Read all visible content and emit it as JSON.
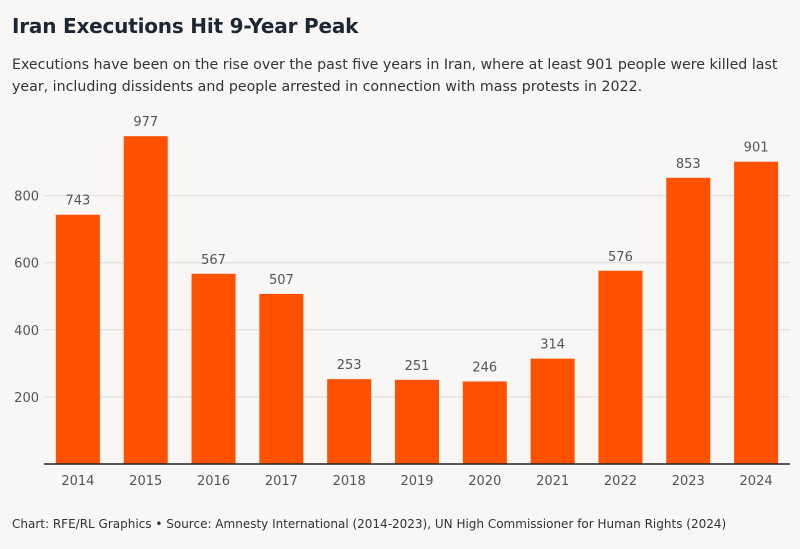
{
  "title": "Iran Executions Hit 9-Year Peak",
  "subtitle": "Executions have been on the rise over the past five years in Iran, where at least 901 people were killed last year, including dissidents and people arrested in connection with mass protests in 2022.",
  "footer": "Chart: RFE/RL Graphics • Source: Amnesty International (2014-2023), UN High Commissioner for Human Rights (2024)",
  "colors": {
    "bar": "#ff5100",
    "grid": "#dedcd8",
    "axis": "#222222",
    "label": "#555555"
  },
  "chart_data": {
    "type": "bar",
    "title": "Iran Executions Hit 9-Year Peak",
    "xlabel": "",
    "ylabel": "",
    "categories": [
      "2014",
      "2015",
      "2016",
      "2017",
      "2018",
      "2019",
      "2020",
      "2021",
      "2022",
      "2023",
      "2024"
    ],
    "values": [
      743,
      977,
      567,
      507,
      253,
      251,
      246,
      314,
      576,
      853,
      901
    ],
    "ylim": [
      0,
      1000
    ],
    "yticks": [
      200,
      400,
      600,
      800
    ],
    "grid": true,
    "data_labels": true
  }
}
